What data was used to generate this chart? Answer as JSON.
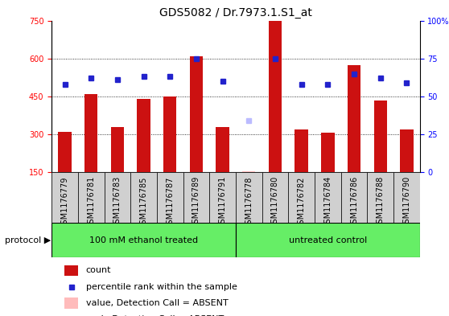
{
  "title": "GDS5082 / Dr.7973.1.S1_at",
  "samples": [
    "GSM1176779",
    "GSM1176781",
    "GSM1176783",
    "GSM1176785",
    "GSM1176787",
    "GSM1176789",
    "GSM1176791",
    "GSM1176778",
    "GSM1176780",
    "GSM1176782",
    "GSM1176784",
    "GSM1176786",
    "GSM1176788",
    "GSM1176790"
  ],
  "counts": [
    310,
    460,
    330,
    440,
    450,
    610,
    330,
    150,
    750,
    320,
    305,
    575,
    435,
    320
  ],
  "percentile_ranks": [
    58,
    62,
    61,
    63,
    63,
    75,
    60,
    null,
    75,
    58,
    58,
    65,
    62,
    59
  ],
  "absent_value": [
    null,
    null,
    null,
    null,
    null,
    null,
    null,
    155,
    null,
    null,
    null,
    null,
    null,
    null
  ],
  "absent_rank": [
    null,
    null,
    null,
    null,
    null,
    null,
    null,
    355,
    null,
    null,
    null,
    null,
    null,
    null
  ],
  "ylim_left": [
    150,
    750
  ],
  "ylim_right": [
    0,
    100
  ],
  "yticks_left": [
    150,
    300,
    450,
    600,
    750
  ],
  "yticks_right": [
    0,
    25,
    50,
    75,
    100
  ],
  "group1_label": "100 mM ethanol treated",
  "group2_label": "untreated control",
  "group1_count": 7,
  "group2_count": 7,
  "bar_color": "#cc1111",
  "dot_color": "#2222cc",
  "absent_bar_color": "#ffbbbb",
  "absent_dot_color": "#bbbbff",
  "group_bg": "#66ee66",
  "xlabel_bg": "#d0d0d0",
  "title_fontsize": 10,
  "tick_fontsize": 7,
  "xlabel_fontsize": 7,
  "legend_fontsize": 8,
  "protocol_fontsize": 8,
  "protocol_label": "protocol"
}
